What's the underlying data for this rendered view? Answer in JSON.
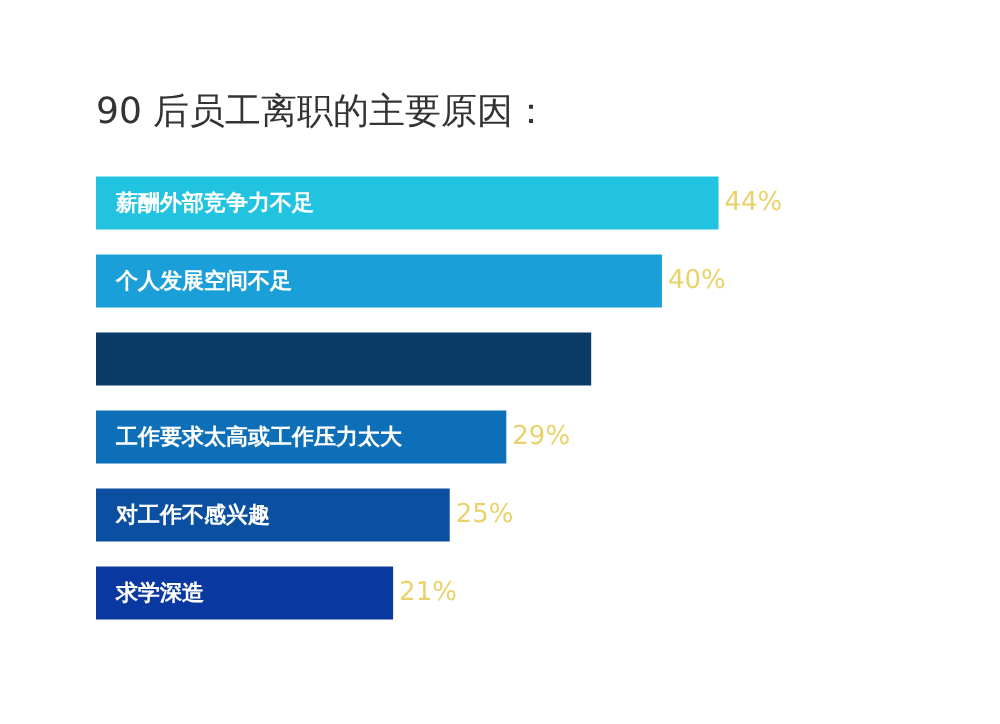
{
  "chart_data": {
    "type": "bar",
    "orientation": "horizontal",
    "title": "90 后员工离职的主要原因：",
    "categories": [
      "薪酬外部竞争力不足",
      "个人发展空间不足",
      null,
      "工作要求太高或工作压力太大",
      "对工作不感兴趣",
      "求学深造"
    ],
    "values": [
      44,
      40,
      35,
      29,
      25,
      21
    ],
    "value_labels": [
      "44%",
      "40%",
      null,
      "29%",
      "25%",
      "21%"
    ],
    "colors": [
      "#22c3e0",
      "#1a9fd8",
      "#0a3a66",
      "#0d6fb8",
      "#0a4fa0",
      "#0838a0"
    ]
  }
}
